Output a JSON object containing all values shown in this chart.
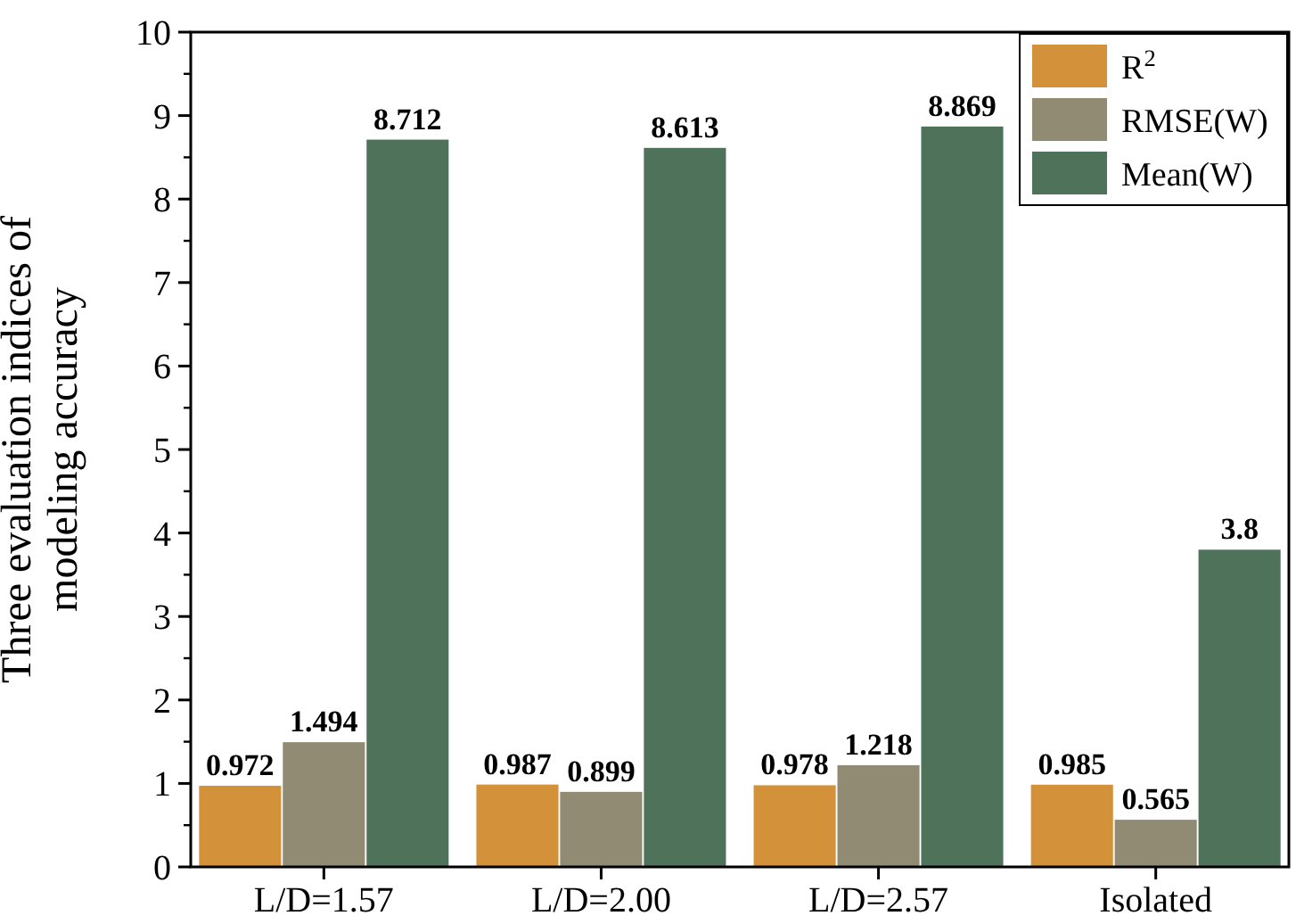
{
  "chart_data": {
    "type": "bar",
    "ylabel": "Three evaluation indices of\nmodeling accuracy",
    "categories": [
      "L/D=1.57",
      "L/D=2.00",
      "L/D=2.57",
      "Isolated"
    ],
    "series": [
      {
        "name": "R$^{2}$",
        "color": "#d3913a",
        "values": [
          0.972,
          0.987,
          0.978,
          0.985
        ]
      },
      {
        "name": "RMSE(W)",
        "color": "#908b72",
        "values": [
          1.494,
          0.899,
          1.218,
          0.565
        ]
      },
      {
        "name": "Mean(W)",
        "color": "#4f735a",
        "values": [
          8.712,
          8.613,
          8.869,
          3.8
        ]
      }
    ],
    "ylim": [
      0,
      10
    ],
    "yticks": [
      0,
      1,
      2,
      3,
      4,
      5,
      6,
      7,
      8,
      9,
      10
    ],
    "data_labels": true,
    "legend": "top right",
    "grid": false
  }
}
